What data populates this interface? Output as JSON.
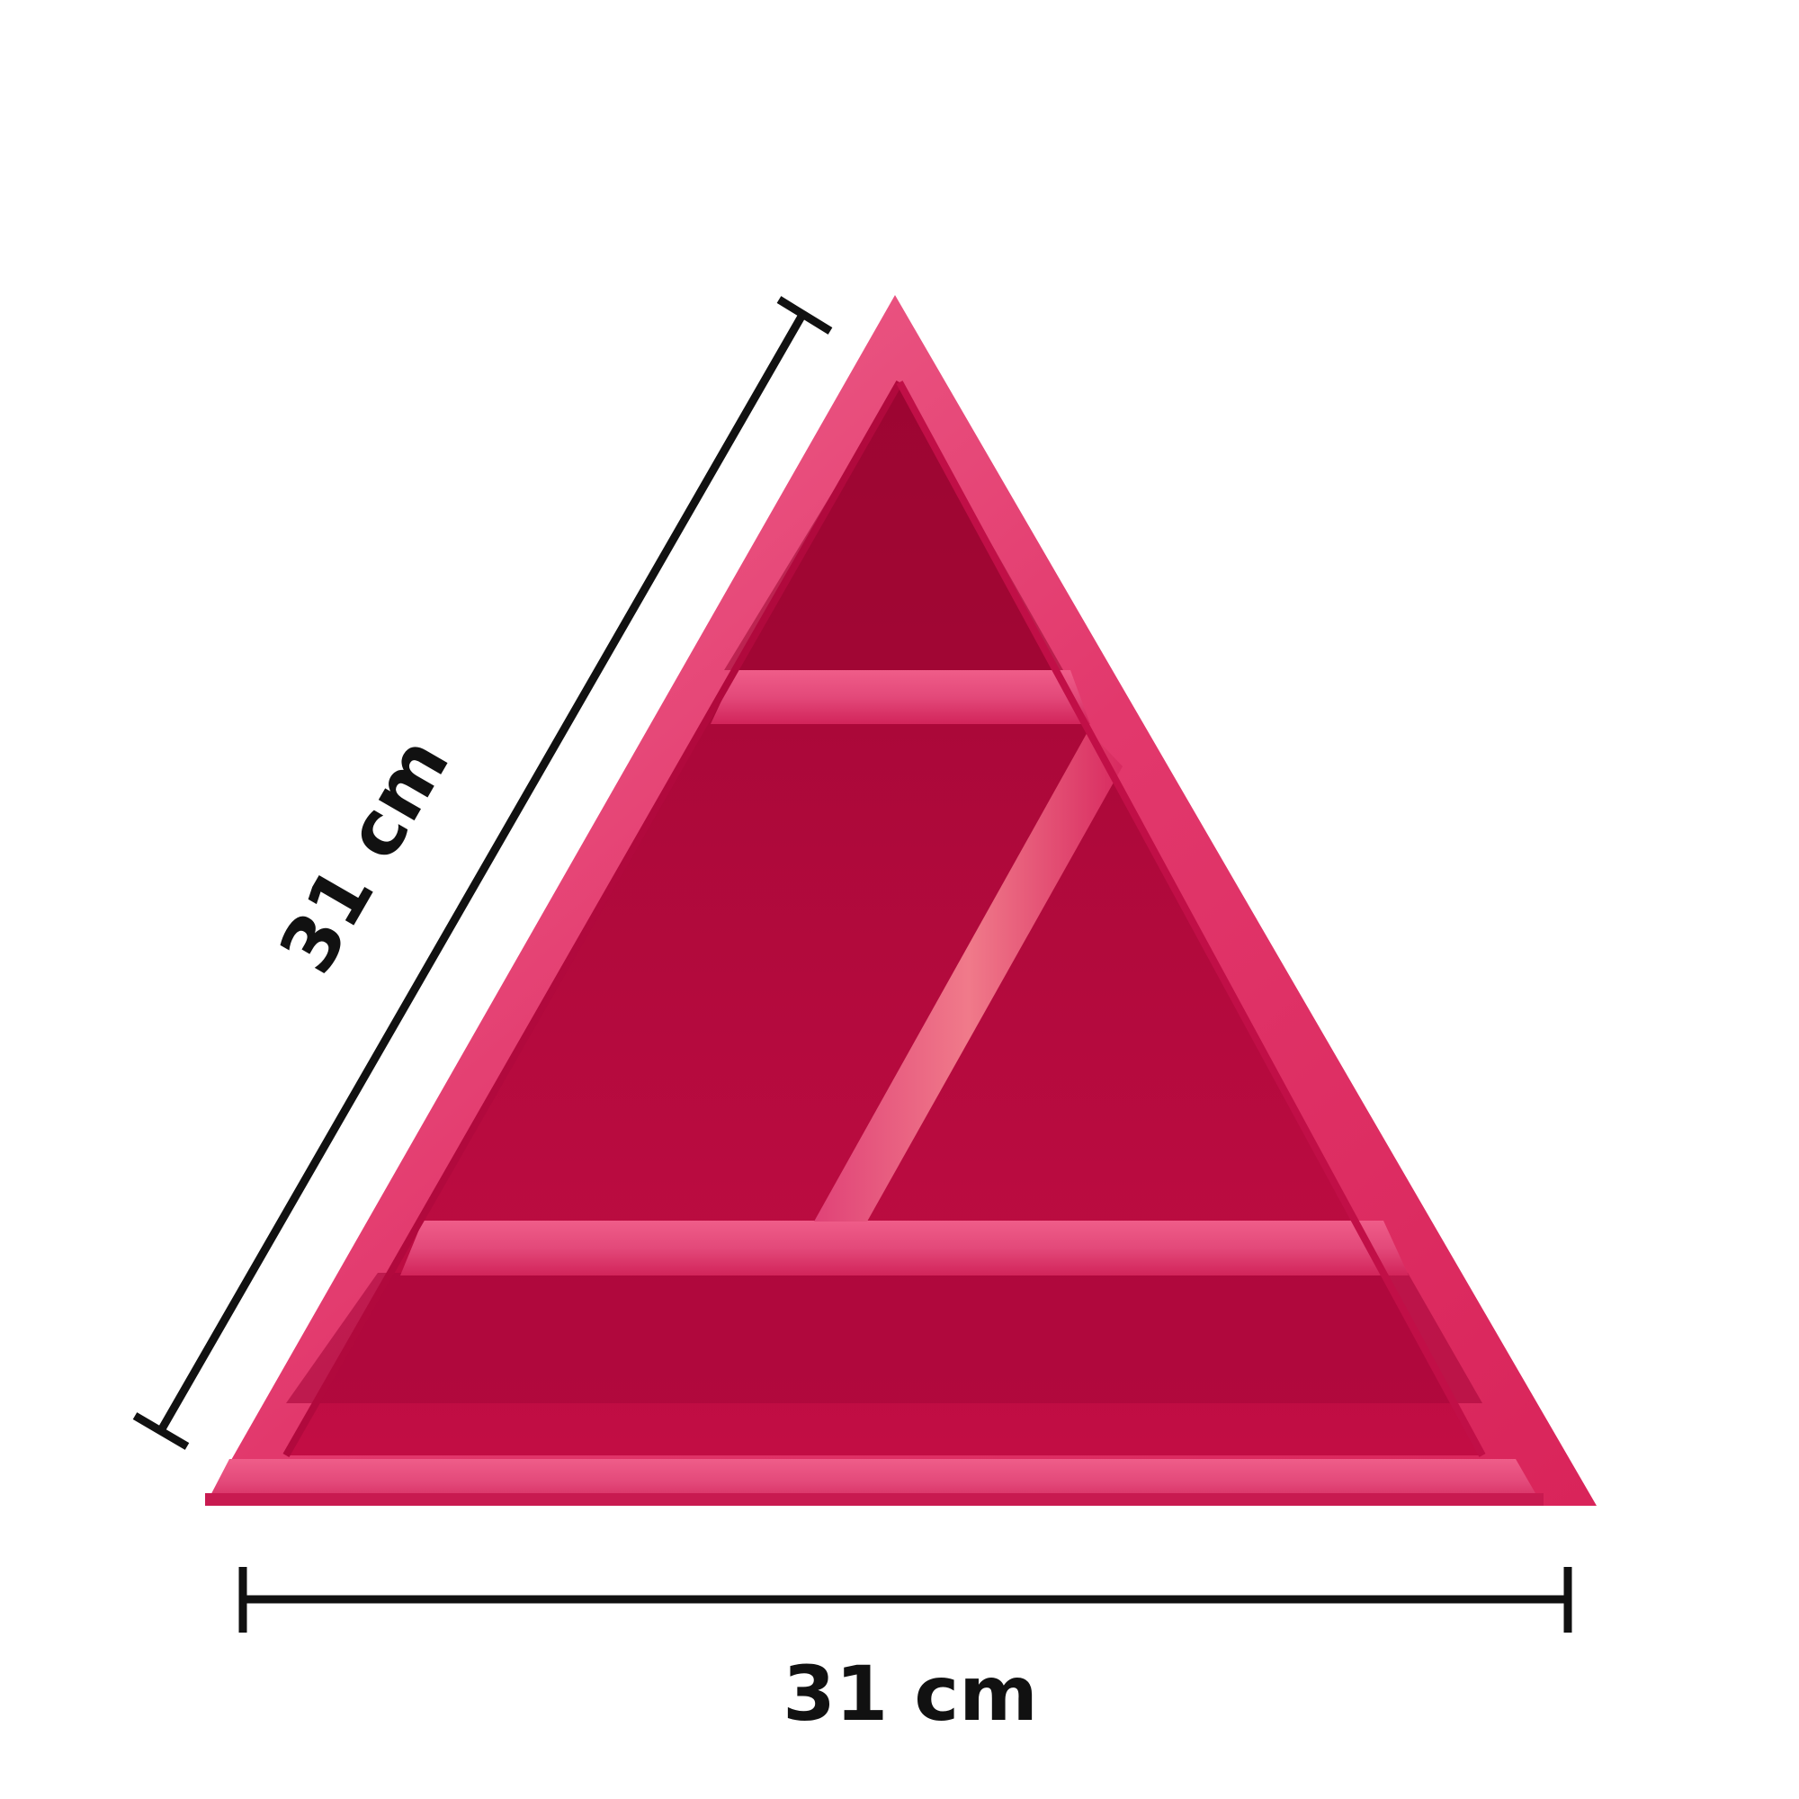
{
  "product": {
    "shelf_color": "#d81b5a",
    "frame_color": "#e94a78",
    "interior_color": "#b8083c",
    "shadow_color": "#8c0530"
  },
  "dimensions": {
    "side_label": "31 cm",
    "base_label": "31 cm",
    "line_color": "#111111"
  }
}
